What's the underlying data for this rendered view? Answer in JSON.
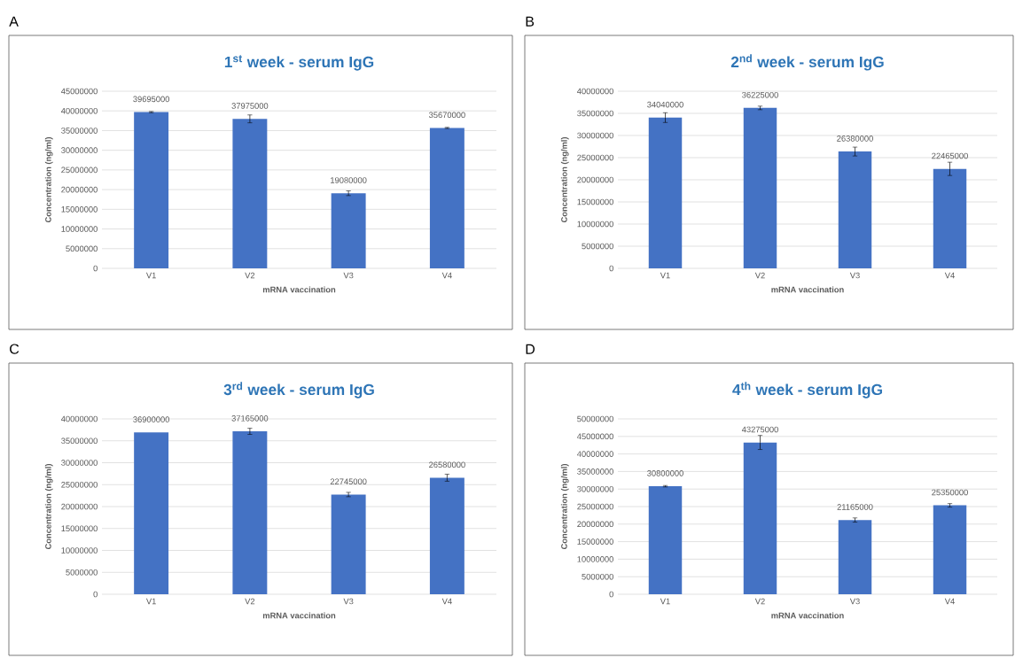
{
  "chart_data": [
    {
      "type": "bar",
      "title": "1$^{st}$ week - serum IgG",
      "xlabel": "mRNA vaccination",
      "ylabel": "Concentration (ng/ml)",
      "annotations": [
        "A"
      ],
      "categories": [
        "V1",
        "V2",
        "V3",
        "V4"
      ],
      "values": [
        39695000,
        37975000,
        19080000,
        35670000
      ],
      "errors": [
        150000,
        1000000,
        600000,
        150000
      ],
      "color": "#4472c4",
      "data_labels": true,
      "grid": "y",
      "ylim": [
        0,
        45000000
      ],
      "yticks": [
        0,
        5000000,
        10000000,
        15000000,
        20000000,
        25000000,
        30000000,
        35000000,
        40000000,
        45000000
      ]
    },
    {
      "type": "bar",
      "title": "2$^{nd}$ week - serum IgG",
      "xlabel": "mRNA vaccination",
      "ylabel": "Concentration (ng/ml)",
      "annotations": [
        "B"
      ],
      "categories": [
        "V1",
        "V2",
        "V3",
        "V4"
      ],
      "values": [
        34040000,
        36225000,
        26380000,
        22465000
      ],
      "errors": [
        1100000,
        400000,
        1000000,
        1500000
      ],
      "color": "#4472c4",
      "data_labels": true,
      "grid": "y",
      "ylim": [
        0,
        40000000
      ],
      "yticks": [
        0,
        5000000,
        10000000,
        15000000,
        20000000,
        25000000,
        30000000,
        35000000,
        40000000
      ]
    },
    {
      "type": "bar",
      "title": "3$^{rd}$ week - serum IgG",
      "xlabel": "mRNA vaccination",
      "ylabel": "Concentration (ng/ml)",
      "annotations": [
        "C"
      ],
      "categories": [
        "V1",
        "V2",
        "V3",
        "V4"
      ],
      "values": [
        36900000,
        37165000,
        22745000,
        26580000
      ],
      "errors": [
        null,
        700000,
        500000,
        800000
      ],
      "color": "#4472c4",
      "data_labels": true,
      "grid": "y",
      "ylim": [
        0,
        40000000
      ],
      "yticks": [
        0,
        5000000,
        10000000,
        15000000,
        20000000,
        25000000,
        30000000,
        35000000,
        40000000
      ]
    },
    {
      "type": "bar",
      "title": "4$^{th}$ week - serum IgG",
      "xlabel": "mRNA vaccination",
      "ylabel": "Concentration (ng/ml)",
      "annotations": [
        "D"
      ],
      "categories": [
        "V1",
        "V2",
        "V3",
        "V4"
      ],
      "values": [
        30800000,
        43275000,
        21165000,
        25350000
      ],
      "errors": [
        200000,
        2000000,
        600000,
        500000
      ],
      "color": "#4472c4",
      "data_labels": true,
      "grid": "y",
      "ylim": [
        0,
        50000000
      ],
      "yticks": [
        0,
        5000000,
        10000000,
        15000000,
        20000000,
        25000000,
        30000000,
        35000000,
        40000000,
        45000000,
        50000000
      ]
    }
  ]
}
